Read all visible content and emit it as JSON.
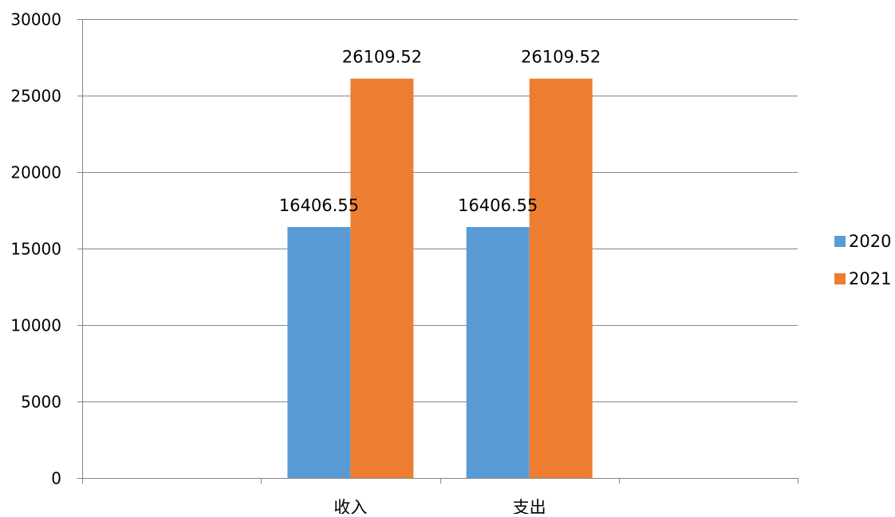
{
  "chart_data": {
    "type": "bar",
    "categories": [
      "",
      "收入",
      "支出",
      ""
    ],
    "series": [
      {
        "name": "2020",
        "color": "#5B9BD5",
        "values": [
          null,
          16406.55,
          16406.55,
          null
        ]
      },
      {
        "name": "2021",
        "color": "#ED7D31",
        "values": [
          null,
          26109.52,
          26109.52,
          null
        ]
      }
    ],
    "ylim": [
      0,
      30000
    ],
    "yticks": [
      0,
      5000,
      10000,
      15000,
      20000,
      25000,
      30000
    ],
    "grid": true,
    "legend_position": "right",
    "data_labels": true,
    "title": "",
    "xlabel": "",
    "ylabel": ""
  }
}
